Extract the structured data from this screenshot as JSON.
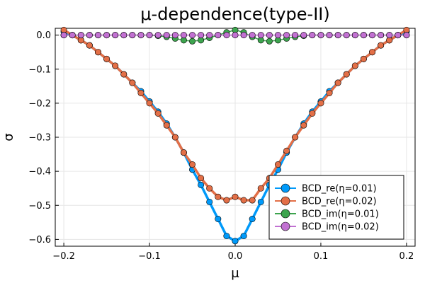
{
  "chart_data": {
    "type": "line",
    "title": "μ-dependence(type-II)",
    "xlabel": "μ",
    "ylabel": "σ",
    "xlim": [
      -0.2,
      0.2
    ],
    "ylim": [
      -0.62,
      0.02
    ],
    "x_ticks": [
      -0.2,
      -0.1,
      0.0,
      0.1,
      0.2
    ],
    "x_tick_labels": [
      "−0.2",
      "−0.1",
      "0.0",
      "0.1",
      "0.2"
    ],
    "y_ticks": [
      0.0,
      -0.1,
      -0.2,
      -0.3,
      -0.4,
      -0.5,
      -0.6
    ],
    "y_tick_labels": [
      "0.0",
      "−0.1",
      "−0.2",
      "−0.3",
      "−0.4",
      "−0.5",
      "−0.6"
    ],
    "grid": true,
    "legend_position": "bottom-right",
    "x": [
      -0.2,
      -0.19,
      -0.18,
      -0.17,
      -0.16,
      -0.15,
      -0.14,
      -0.13,
      -0.12,
      -0.11,
      -0.1,
      -0.09,
      -0.08,
      -0.07,
      -0.06,
      -0.05,
      -0.04,
      -0.03,
      -0.02,
      -0.01,
      0.0,
      0.01,
      0.02,
      0.03,
      0.04,
      0.05,
      0.06,
      0.07,
      0.08,
      0.09,
      0.1,
      0.11,
      0.12,
      0.13,
      0.14,
      0.15,
      0.16,
      0.17,
      0.18,
      0.19,
      0.2
    ],
    "series": [
      {
        "name": "BCD_re(η=0.01)",
        "color": "#009AFA",
        "values": [
          0.01,
          0.0,
          -0.015,
          -0.03,
          -0.05,
          -0.07,
          -0.09,
          -0.115,
          -0.14,
          -0.165,
          -0.195,
          -0.225,
          -0.26,
          -0.3,
          -0.345,
          -0.395,
          -0.44,
          -0.49,
          -0.54,
          -0.59,
          -0.605,
          -0.59,
          -0.54,
          -0.49,
          -0.44,
          -0.395,
          -0.345,
          -0.3,
          -0.26,
          -0.225,
          -0.195,
          -0.165,
          -0.14,
          -0.115,
          -0.09,
          -0.07,
          -0.05,
          -0.03,
          -0.015,
          0.0,
          0.01
        ]
      },
      {
        "name": "BCD_re(η=0.02)",
        "color": "#E36F47",
        "values": [
          0.015,
          0.0,
          -0.015,
          -0.03,
          -0.05,
          -0.07,
          -0.09,
          -0.115,
          -0.14,
          -0.17,
          -0.2,
          -0.23,
          -0.265,
          -0.3,
          -0.345,
          -0.38,
          -0.42,
          -0.45,
          -0.475,
          -0.485,
          -0.475,
          -0.485,
          -0.485,
          -0.45,
          -0.42,
          -0.38,
          -0.34,
          -0.3,
          -0.265,
          -0.23,
          -0.2,
          -0.17,
          -0.14,
          -0.115,
          -0.09,
          -0.07,
          -0.05,
          -0.03,
          -0.015,
          0.0,
          0.015
        ]
      },
      {
        "name": "BCD_im(η=0.01)",
        "color": "#3DA44E",
        "values": [
          0.0,
          0.0,
          0.0,
          0.0,
          0.0,
          0.0,
          0.0,
          0.0,
          0.0,
          0.0,
          0.0,
          -0.002,
          -0.005,
          -0.01,
          -0.015,
          -0.018,
          -0.015,
          -0.008,
          0.0,
          0.008,
          0.015,
          0.008,
          -0.005,
          -0.015,
          -0.018,
          -0.015,
          -0.01,
          -0.005,
          -0.002,
          0.0,
          0.0,
          0.0,
          0.0,
          0.0,
          0.0,
          0.0,
          0.0,
          0.0,
          0.0,
          0.0,
          0.0
        ]
      },
      {
        "name": "BCD_im(η=0.02)",
        "color": "#C271D2",
        "values": [
          0.0,
          0.0,
          0.0,
          0.0,
          0.0,
          0.0,
          0.0,
          0.0,
          0.0,
          0.0,
          0.0,
          0.0,
          0.0,
          0.0,
          0.0,
          0.0,
          0.0,
          0.0,
          0.0,
          0.0,
          0.0,
          0.0,
          0.0,
          0.0,
          0.0,
          0.0,
          0.0,
          0.0,
          0.0,
          0.0,
          0.0,
          0.0,
          0.0,
          0.0,
          0.0,
          0.0,
          0.0,
          0.0,
          0.0,
          0.0,
          0.0
        ]
      }
    ]
  }
}
